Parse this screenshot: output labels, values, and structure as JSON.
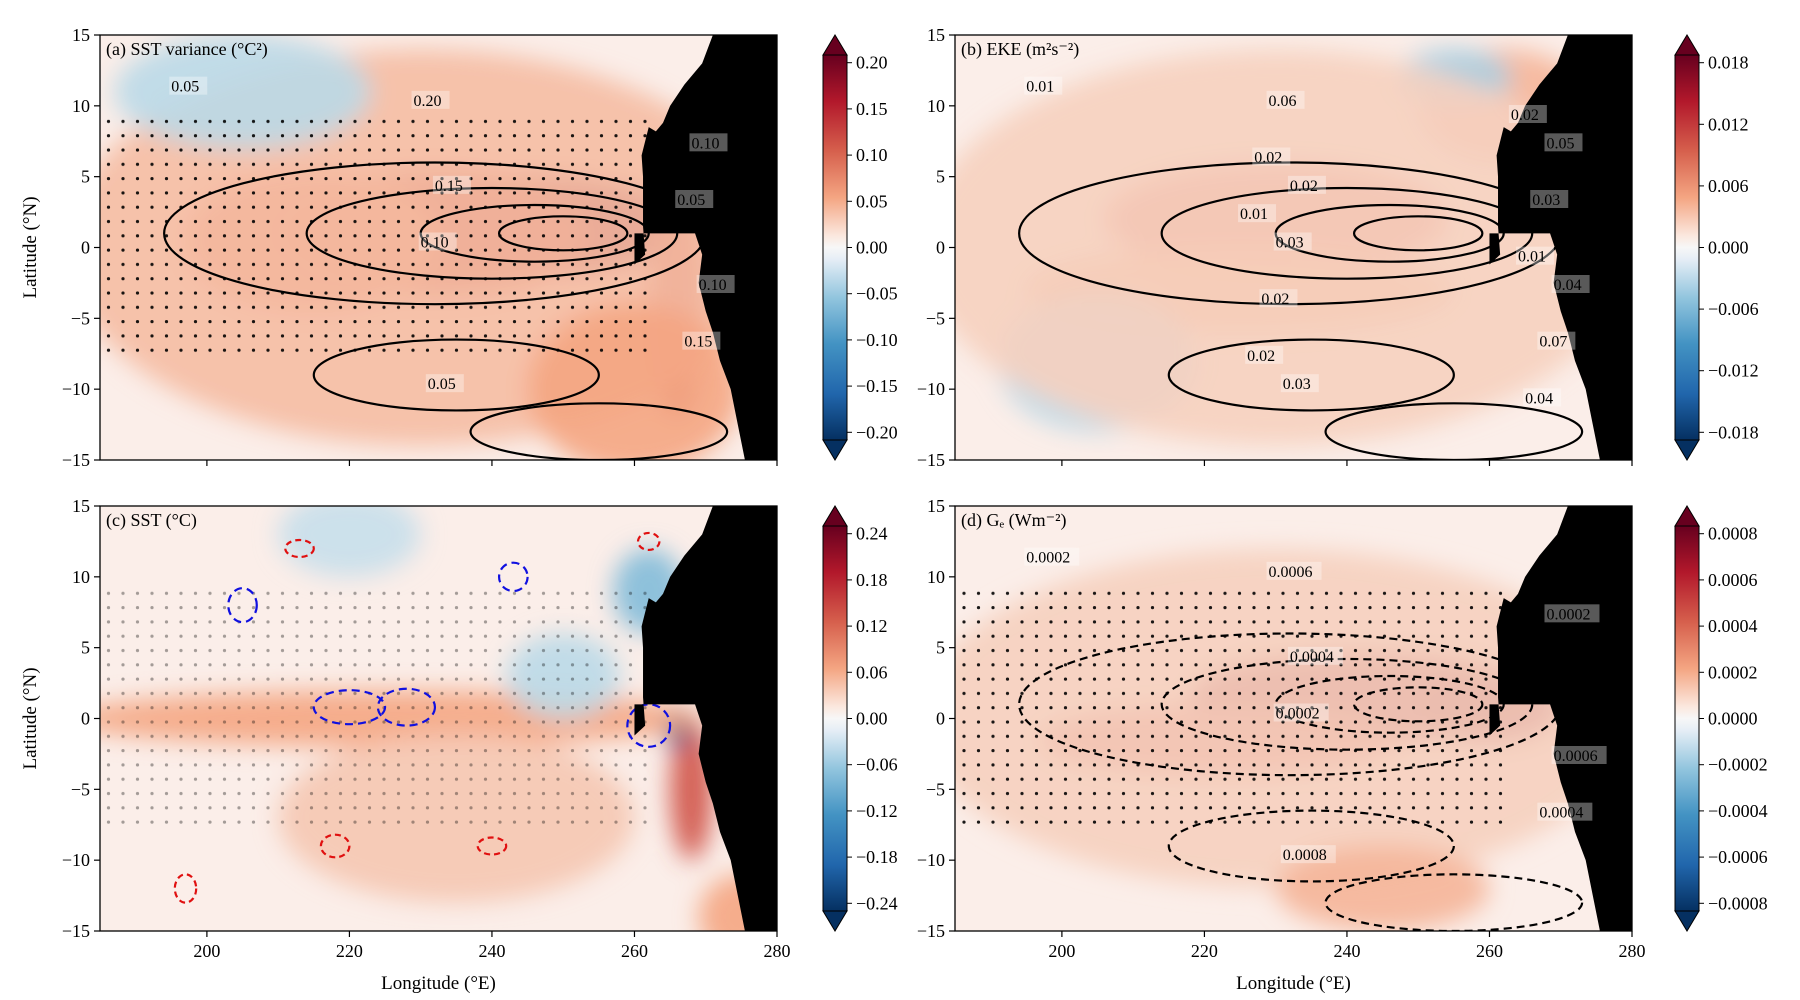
{
  "figure": {
    "panels": [
      {
        "id": "a",
        "title": "(a) SST variance (°C²)",
        "colorbar_ticks": [
          "0.20",
          "0.15",
          "0.10",
          "0.05",
          "0.00",
          "−0.05",
          "−0.10",
          "−0.15",
          "−0.20"
        ],
        "contour_labels": [
          "0.05",
          "0.15",
          "0.10",
          "0.05",
          "0.10",
          "0.10",
          "0.15",
          "0.20",
          "0.05"
        ],
        "contour_color": "#000000",
        "dashed": false,
        "show_xticklabels": false,
        "show_ylabel": true
      },
      {
        "id": "b",
        "title": "(b) EKE (m²s⁻²)",
        "colorbar_ticks": [
          "0.018",
          "0.012",
          "0.006",
          "0.000",
          "−0.006",
          "−0.012",
          "−0.018"
        ],
        "contour_labels": [
          "0.01",
          "0.02",
          "0.04",
          "0.03",
          "0.05",
          "0.03",
          "0.07",
          "0.06",
          "0.03",
          "0.02",
          "0.04",
          "0.02",
          "0.01",
          "0.02",
          "0.02",
          "0.01"
        ],
        "contour_color": "#000000",
        "dashed": false,
        "show_xticklabels": false,
        "show_ylabel": false
      },
      {
        "id": "c",
        "title": "(c) SST (°C)",
        "colorbar_ticks": [
          "0.24",
          "0.18",
          "0.12",
          "0.06",
          "0.00",
          "−0.06",
          "−0.12",
          "−0.18",
          "−0.24"
        ],
        "contour_labels": [],
        "contour_color": "#1010e0",
        "dashed": true,
        "show_xticklabels": true,
        "show_ylabel": true
      },
      {
        "id": "d",
        "title": "(d) Gₑ (Wm⁻²)",
        "colorbar_ticks": [
          "0.0008",
          "0.0006",
          "0.0004",
          "0.0002",
          "0.0000",
          "−0.0002",
          "−0.0004",
          "−0.0006",
          "−0.0008"
        ],
        "contour_labels": [
          "0.0002",
          "0.0004",
          "0.0006",
          "0.0008",
          "0.0002",
          "0.0002",
          "0.0004",
          "0.0006"
        ],
        "contour_color": "#000000",
        "dashed": true,
        "show_xticklabels": true,
        "show_ylabel": false
      }
    ],
    "ylabel": "Latitude (°N)",
    "xlabel": "Longitude (°E)",
    "y_ticks": [
      "15",
      "10",
      "5",
      "0",
      "−5",
      "−10",
      "−15"
    ],
    "x_ticks": [
      "200",
      "220",
      "240",
      "260",
      "280"
    ]
  },
  "chart_data": [
    {
      "type": "heatmap",
      "panel": "a",
      "title": "(a) SST variance (°C²)",
      "xlabel": "",
      "ylabel": "Latitude (°N)",
      "xlim": [
        185,
        280
      ],
      "ylim": [
        -15,
        15
      ],
      "colorbar_range": [
        -0.2,
        0.2
      ],
      "colormap": "RdBu_r",
      "contour_levels": [
        0.05,
        0.1,
        0.15,
        0.2
      ],
      "stippling": true
    },
    {
      "type": "heatmap",
      "panel": "b",
      "title": "(b) EKE (m²s⁻²)",
      "xlabel": "",
      "ylabel": "",
      "xlim": [
        185,
        280
      ],
      "ylim": [
        -15,
        15
      ],
      "colorbar_range": [
        -0.018,
        0.018
      ],
      "colormap": "RdBu_r",
      "contour_levels": [
        0.01,
        0.02,
        0.03,
        0.04,
        0.05,
        0.06,
        0.07
      ],
      "stippling": false
    },
    {
      "type": "heatmap",
      "panel": "c",
      "title": "(c) SST (°C)",
      "xlabel": "Longitude (°E)",
      "ylabel": "Latitude (°N)",
      "xlim": [
        185,
        280
      ],
      "ylim": [
        -15,
        15
      ],
      "colorbar_range": [
        -0.24,
        0.24
      ],
      "colormap": "RdBu_r",
      "contour_colors": [
        "red",
        "blue"
      ],
      "stippling": true
    },
    {
      "type": "heatmap",
      "panel": "d",
      "title": "(d) Gₑ (Wm⁻²)",
      "xlabel": "Longitude (°E)",
      "ylabel": "",
      "xlim": [
        185,
        280
      ],
      "ylim": [
        -15,
        15
      ],
      "colorbar_range": [
        -0.0008,
        0.0008
      ],
      "colormap": "RdBu_r",
      "contour_levels": [
        0.0002,
        0.0004,
        0.0006,
        0.0008
      ],
      "contour_style": "dashed",
      "stippling": true
    }
  ]
}
